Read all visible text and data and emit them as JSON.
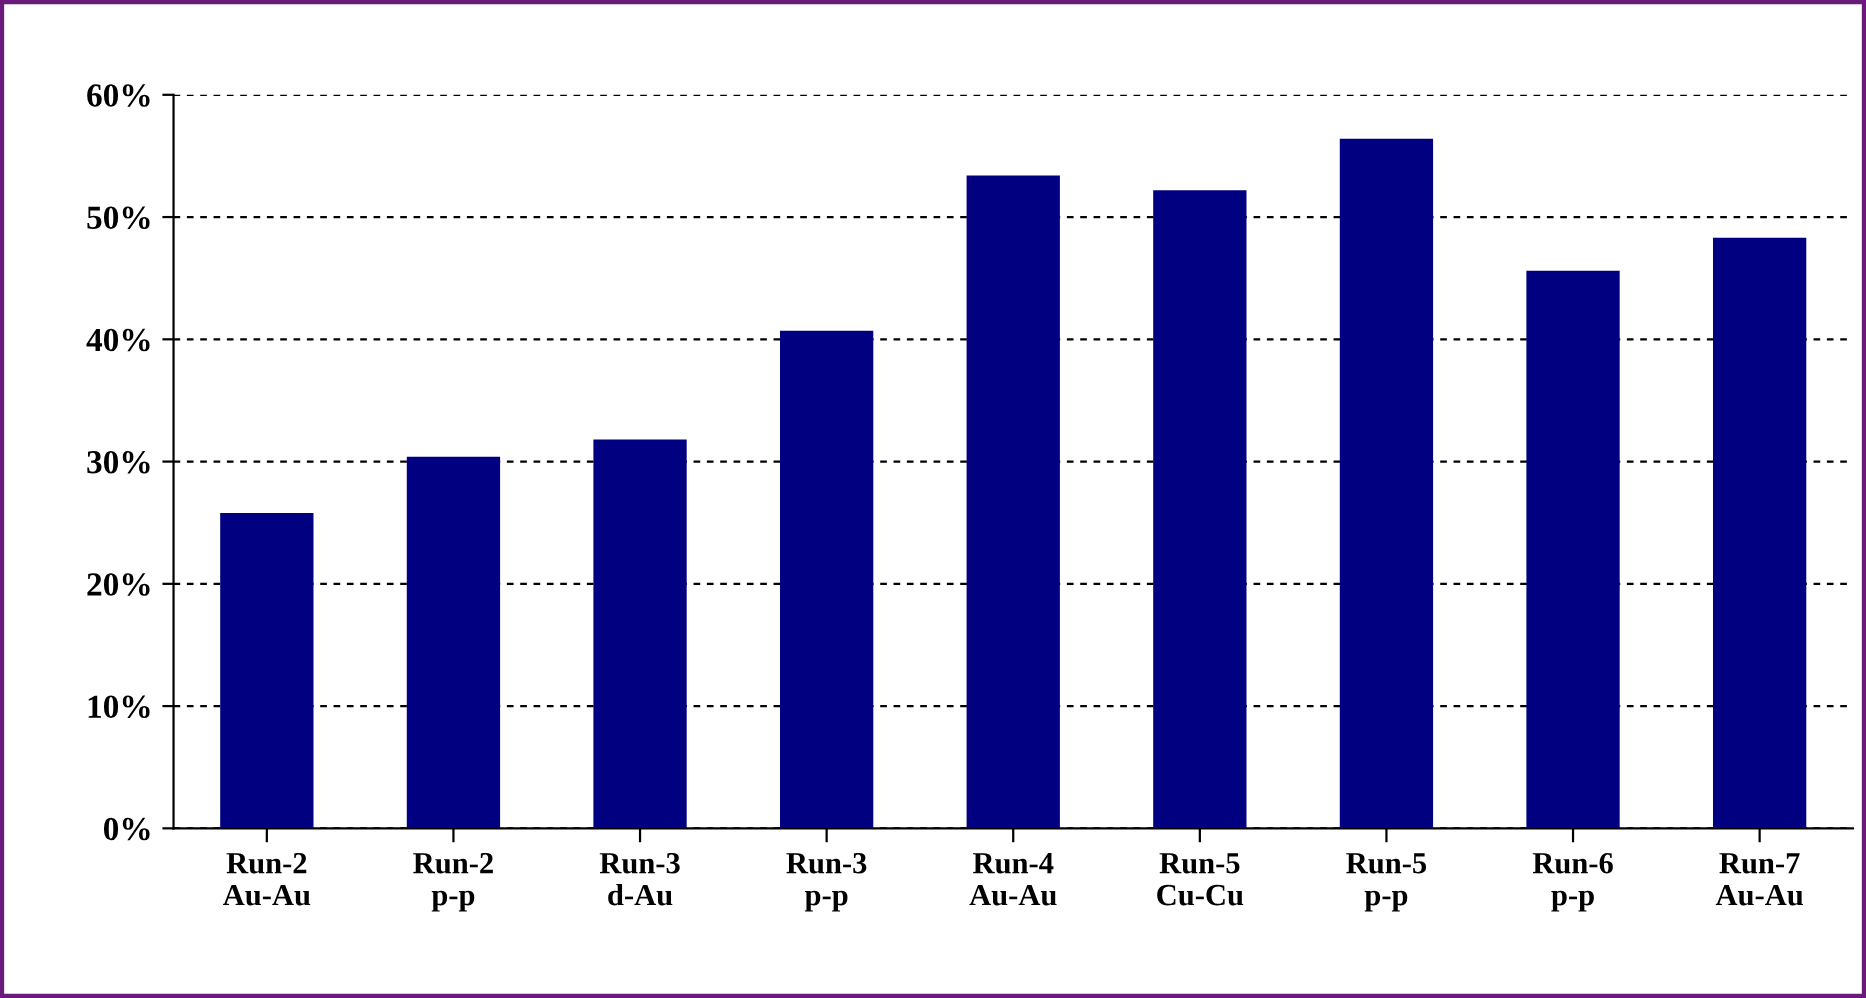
{
  "chart_data": {
    "type": "bar",
    "categories": [
      "Run-2\nAu-Au",
      "Run-2\np-p",
      "Run-3\nd-Au",
      "Run-3\np-p",
      "Run-4\nAu-Au",
      "Run-5\nCu-Cu",
      "Run-5\np-p",
      "Run-6\np-p",
      "Run-7\nAu-Au"
    ],
    "values": [
      25.8,
      30.4,
      31.8,
      40.7,
      53.4,
      52.2,
      56.4,
      45.6,
      48.3
    ],
    "color": "#000080",
    "ylim": [
      0,
      60
    ],
    "yticks": [
      {
        "value": 0,
        "label": "0%"
      },
      {
        "value": 10,
        "label": "10%"
      },
      {
        "value": 20,
        "label": "20%"
      },
      {
        "value": 30,
        "label": "30%"
      },
      {
        "value": 40,
        "label": "40%"
      },
      {
        "value": 50,
        "label": "50%"
      },
      {
        "value": 60,
        "label": "60%"
      }
    ],
    "grid": "y"
  }
}
